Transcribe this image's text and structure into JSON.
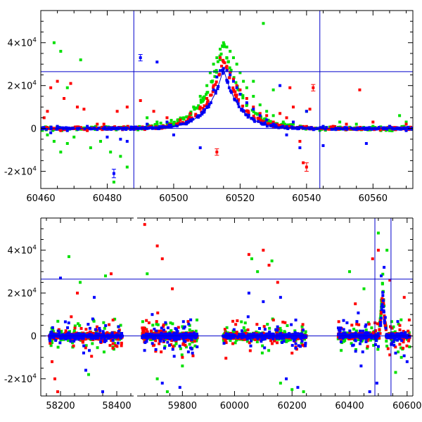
{
  "chart_data": [
    {
      "type": "scatter",
      "xlim": [
        60460,
        60572
      ],
      "ylim": [
        -28000,
        55000
      ],
      "x_ticks": [
        {
          "value": 60460,
          "label": "60460"
        },
        {
          "value": 60480,
          "label": "60480"
        },
        {
          "value": 60500,
          "label": "60500"
        },
        {
          "value": 60520,
          "label": "60520"
        },
        {
          "value": 60540,
          "label": "60540"
        },
        {
          "value": 60560,
          "label": "60560"
        }
      ],
      "y_ticks": [
        {
          "value": -20000,
          "mant": "-2",
          "exp": "4"
        },
        {
          "value": 0,
          "mant": "0",
          "exp": ""
        },
        {
          "value": 20000,
          "mant": "2",
          "exp": "4"
        },
        {
          "value": 40000,
          "mant": "4",
          "exp": "4"
        }
      ],
      "hlines": [
        26500,
        0
      ],
      "vlines": [
        60488,
        60544
      ],
      "colors": {
        "red": "#ff0000",
        "green": "#00e000",
        "blue": "#0000ff",
        "line": "#0000cc"
      },
      "series": [
        {
          "color": "green",
          "points": [
            [
              60462,
              -3000
            ],
            [
              60464,
              -6000
            ],
            [
              60466,
              -11000
            ],
            [
              60468,
              -7000
            ],
            [
              60470,
              -4000
            ],
            [
              60475,
              -9000
            ],
            [
              60478,
              -6000
            ],
            [
              60481,
              -11000
            ],
            [
              60484,
              -13000
            ],
            [
              60486,
              -18000
            ],
            [
              60464,
              40000
            ],
            [
              60466,
              36000
            ],
            [
              60472,
              32000
            ],
            [
              60468,
              19000
            ],
            [
              60495,
              3000
            ],
            [
              60500,
              2000
            ],
            [
              60503,
              5000
            ],
            [
              60506,
              10000
            ],
            [
              60508,
              15000
            ],
            [
              60510,
              20000
            ],
            [
              60511,
              26000
            ],
            [
              60512,
              30000
            ],
            [
              60513,
              33000
            ],
            [
              60514,
              37000
            ],
            [
              60515,
              40000
            ],
            [
              60516,
              38000
            ],
            [
              60517,
              36000
            ],
            [
              60518,
              33000
            ],
            [
              60519,
              30000
            ],
            [
              60520,
              26000
            ],
            [
              60521,
              22000
            ],
            [
              60522,
              19000
            ],
            [
              60524,
              15000
            ],
            [
              60526,
              11000
            ],
            [
              60528,
              8000
            ],
            [
              60530,
              6000
            ],
            [
              60533,
              3000
            ],
            [
              60536,
              2000
            ],
            [
              60527,
              49000
            ],
            [
              60524,
              22000
            ],
            [
              60530,
              18000
            ],
            [
              60540,
              8000
            ],
            [
              60550,
              3000
            ],
            [
              60555,
              2000
            ],
            [
              60560,
              1000
            ],
            [
              60565,
              -1000
            ],
            [
              60568,
              6000
            ],
            [
              60570,
              3000
            ],
            [
              60482,
              -25000
            ],
            [
              60492,
              5000
            ]
          ]
        },
        {
          "color": "red",
          "points": [
            [
              60461,
              5000
            ],
            [
              60463,
              19000
            ],
            [
              60465,
              22000
            ],
            [
              60467,
              14000
            ],
            [
              60469,
              21000
            ],
            [
              60471,
              10000
            ],
            [
              60473,
              9000
            ],
            [
              60466,
              -1000
            ],
            [
              60474,
              -1000
            ],
            [
              60477,
              2000
            ],
            [
              60483,
              8000
            ],
            [
              60486,
              10000
            ],
            [
              60490,
              13000
            ],
            [
              60494,
              8000
            ],
            [
              60498,
              5000
            ],
            [
              60502,
              4000
            ],
            [
              60505,
              7000
            ],
            [
              60508,
              10000
            ],
            [
              60510,
              14000
            ],
            [
              60512,
              20000
            ],
            [
              60513,
              -11000
            ],
            [
              60514,
              33000
            ],
            [
              60515,
              31000
            ],
            [
              60516,
              29000
            ],
            [
              60517,
              26000
            ],
            [
              60518,
              23000
            ],
            [
              60519,
              20000
            ],
            [
              60520,
              18000
            ],
            [
              60522,
              14000
            ],
            [
              60524,
              10000
            ],
            [
              60526,
              7000
            ],
            [
              60528,
              6000
            ],
            [
              60530,
              3000
            ],
            [
              60532,
              7000
            ],
            [
              60534,
              5000
            ],
            [
              60536,
              10000
            ],
            [
              60538,
              -6000
            ],
            [
              60539,
              -16000
            ],
            [
              60540,
              -18000
            ],
            [
              60541,
              9000
            ],
            [
              60542,
              19000
            ],
            [
              60535,
              19000
            ],
            [
              60548,
              1000
            ],
            [
              60552,
              2000
            ],
            [
              60556,
              18000
            ],
            [
              60560,
              3000
            ],
            [
              60565,
              1000
            ],
            [
              60570,
              2000
            ],
            [
              60462,
              8000
            ],
            [
              60479,
              2000
            ]
          ]
        },
        {
          "color": "blue",
          "points": [
            [
              60461,
              0
            ],
            [
              60463,
              -2000
            ],
            [
              60465,
              1000
            ],
            [
              60468,
              -1000
            ],
            [
              60471,
              0
            ],
            [
              60474,
              1000
            ],
            [
              60477,
              -500
            ],
            [
              60480,
              -4000
            ],
            [
              60482,
              -21000
            ],
            [
              60484,
              -5000
            ],
            [
              60486,
              -6000
            ],
            [
              60490,
              33000
            ],
            [
              60495,
              31000
            ],
            [
              60492,
              2000
            ],
            [
              60498,
              3000
            ],
            [
              60502,
              2000
            ],
            [
              60505,
              4000
            ],
            [
              60508,
              6000
            ],
            [
              60510,
              10000
            ],
            [
              60512,
              18000
            ],
            [
              60513,
              24000
            ],
            [
              60514,
              27000
            ],
            [
              60515,
              28000
            ],
            [
              60516,
              27000
            ],
            [
              60517,
              25000
            ],
            [
              60518,
              22000
            ],
            [
              60519,
              19000
            ],
            [
              60520,
              16000
            ],
            [
              60522,
              12000
            ],
            [
              60524,
              9000
            ],
            [
              60526,
              6000
            ],
            [
              60528,
              4000
            ],
            [
              60530,
              2000
            ],
            [
              60532,
              20000
            ],
            [
              60534,
              -3000
            ],
            [
              60536,
              3000
            ],
            [
              60538,
              -9000
            ],
            [
              60540,
              8000
            ],
            [
              60545,
              1000
            ],
            [
              60550,
              0
            ],
            [
              60555,
              -500
            ],
            [
              60558,
              -7000
            ],
            [
              60560,
              0
            ],
            [
              60565,
              1000
            ],
            [
              60570,
              -1000
            ],
            [
              60500,
              -3000
            ],
            [
              60508,
              -9000
            ],
            [
              60545,
              -8000
            ]
          ]
        }
      ],
      "errorbars": [
        {
          "x": 60482,
          "y": -21000,
          "dy": 2000,
          "color": "blue"
        },
        {
          "x": 60490,
          "y": 33000,
          "dy": 1500,
          "color": "blue"
        },
        {
          "x": 60513,
          "y": -11000,
          "dy": 1500,
          "color": "red"
        },
        {
          "x": 60540,
          "y": -18000,
          "dy": 2000,
          "color": "red"
        },
        {
          "x": 60542,
          "y": 19000,
          "dy": 1500,
          "color": "red"
        }
      ],
      "band": {
        "x_start": 60460,
        "x_end": 60572,
        "peak_x": 60515,
        "base_y": 0,
        "peaks": [
          {
            "color": "green",
            "peak_y": 40000,
            "width": 9,
            "noise": 1500
          },
          {
            "color": "red",
            "peak_y": 33000,
            "width": 8,
            "noise": 1200
          },
          {
            "color": "blue",
            "peak_y": 28000,
            "width": 7.5,
            "noise": 900
          }
        ]
      }
    },
    {
      "type": "scatter",
      "axis_breaks": true,
      "ylim": [
        -28000,
        55000
      ],
      "segments": [
        {
          "xlim": [
            58130,
            58460
          ],
          "ticks": [
            {
              "value": 58200,
              "label": "58200"
            },
            {
              "value": 58400,
              "label": "58400"
            }
          ]
        },
        {
          "xlim": [
            59620,
            59950
          ],
          "ticks": [
            {
              "value": 59800,
              "label": "59800"
            }
          ]
        },
        {
          "xlim": [
            59950,
            60620
          ],
          "ticks": [
            {
              "value": 60000,
              "label": "60000"
            },
            {
              "value": 60200,
              "label": "60200"
            },
            {
              "value": 60400,
              "label": "60400"
            },
            {
              "value": 60600,
              "label": "60600"
            }
          ]
        }
      ],
      "y_ticks": [
        {
          "value": -20000,
          "mant": "-2",
          "exp": "4"
        },
        {
          "value": 0,
          "mant": "0",
          "exp": ""
        },
        {
          "value": 20000,
          "mant": "2",
          "exp": "4"
        },
        {
          "value": 40000,
          "mant": "4",
          "exp": "4"
        }
      ],
      "hlines": [
        26500,
        0
      ],
      "vlines": [
        60488,
        60544
      ],
      "clusters": [
        {
          "x_start": 58160,
          "x_end": 58420,
          "seg": 0
        },
        {
          "x_start": 59640,
          "x_end": 59860,
          "seg": 1
        },
        {
          "x_start": 59960,
          "x_end": 60250,
          "seg": 2
        },
        {
          "x_start": 60360,
          "x_end": 60610,
          "seg": 2
        }
      ],
      "outliers": [
        {
          "color": "red",
          "points": [
            [
              58170,
              -12000
            ],
            [
              58180,
              -20000
            ],
            [
              58190,
              -26000
            ],
            [
              58380,
              29000
            ],
            [
              58260,
              20000
            ],
            [
              59650,
              52000
            ],
            [
              59700,
              42000
            ],
            [
              59720,
              36000
            ],
            [
              59760,
              22000
            ],
            [
              59800,
              -10000
            ],
            [
              60050,
              38000
            ],
            [
              60100,
              40000
            ],
            [
              60120,
              33000
            ],
            [
              60150,
              25000
            ],
            [
              60480,
              36000
            ],
            [
              60500,
              40000
            ],
            [
              60540,
              26000
            ],
            [
              60590,
              18000
            ],
            [
              60420,
              15000
            ],
            [
              60200,
              -8000
            ]
          ]
        },
        {
          "color": "green",
          "points": [
            [
              58230,
              37000
            ],
            [
              58270,
              25000
            ],
            [
              58360,
              28000
            ],
            [
              58300,
              -18000
            ],
            [
              59660,
              29000
            ],
            [
              59700,
              -20000
            ],
            [
              59740,
              -26000
            ],
            [
              59800,
              -14000
            ],
            [
              60060,
              36000
            ],
            [
              60080,
              30000
            ],
            [
              60130,
              35000
            ],
            [
              60160,
              -22000
            ],
            [
              60200,
              -25000
            ],
            [
              60240,
              -26000
            ],
            [
              60400,
              30000
            ],
            [
              60450,
              22000
            ],
            [
              60500,
              48000
            ],
            [
              60530,
              40000
            ],
            [
              60560,
              -17000
            ],
            [
              60580,
              -10000
            ]
          ]
        },
        {
          "color": "blue",
          "points": [
            [
              58200,
              27000
            ],
            [
              58320,
              18000
            ],
            [
              58290,
              -16000
            ],
            [
              58350,
              -26000
            ],
            [
              59680,
              10000
            ],
            [
              59720,
              -22000
            ],
            [
              59790,
              -24000
            ],
            [
              59840,
              -8000
            ],
            [
              60050,
              20000
            ],
            [
              60100,
              16000
            ],
            [
              60160,
              18000
            ],
            [
              60180,
              -20000
            ],
            [
              60220,
              -24000
            ],
            [
              60440,
              -14000
            ],
            [
              60470,
              -26000
            ],
            [
              60495,
              -22000
            ],
            [
              60510,
              28000
            ],
            [
              60520,
              32000
            ],
            [
              60560,
              -8000
            ],
            [
              60600,
              -12000
            ]
          ]
        }
      ],
      "colors": {
        "red": "#ff0000",
        "green": "#00e000",
        "blue": "#0000ff",
        "line": "#0000cc"
      }
    }
  ]
}
